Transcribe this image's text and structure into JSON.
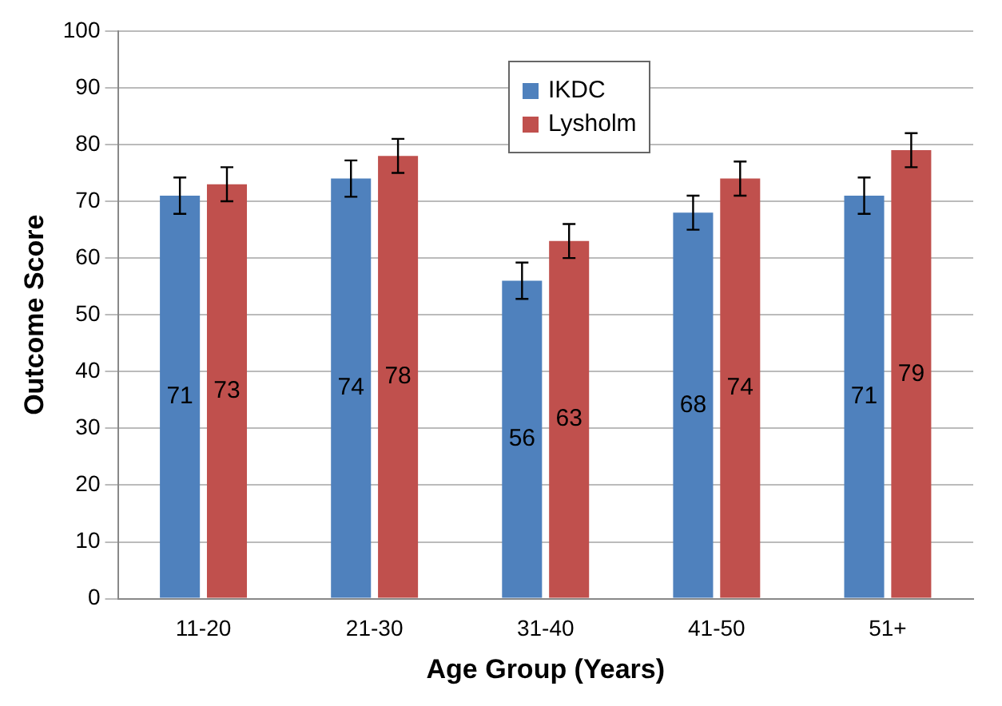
{
  "chart_data": {
    "type": "bar",
    "xlabel": "Age Group (Years)",
    "ylabel": "Outcome Score",
    "categories": [
      "11-20",
      "21-30",
      "31-40",
      "41-50",
      "51+"
    ],
    "series": [
      {
        "name": "IKDC",
        "color": "#4f81bd",
        "values": [
          71,
          74,
          56,
          68,
          71
        ],
        "errors": [
          3.2,
          3.2,
          3.2,
          3,
          3.2
        ]
      },
      {
        "name": "Lysholm",
        "color": "#c0504d",
        "values": [
          73,
          78,
          63,
          74,
          79
        ],
        "errors": [
          3,
          3,
          3,
          3,
          3
        ]
      }
    ],
    "ylim": [
      0,
      100
    ],
    "yticks": [
      0,
      10,
      20,
      30,
      40,
      50,
      60,
      70,
      80,
      90,
      100
    ],
    "grid": "y",
    "legend": "top",
    "data_labels": true
  }
}
